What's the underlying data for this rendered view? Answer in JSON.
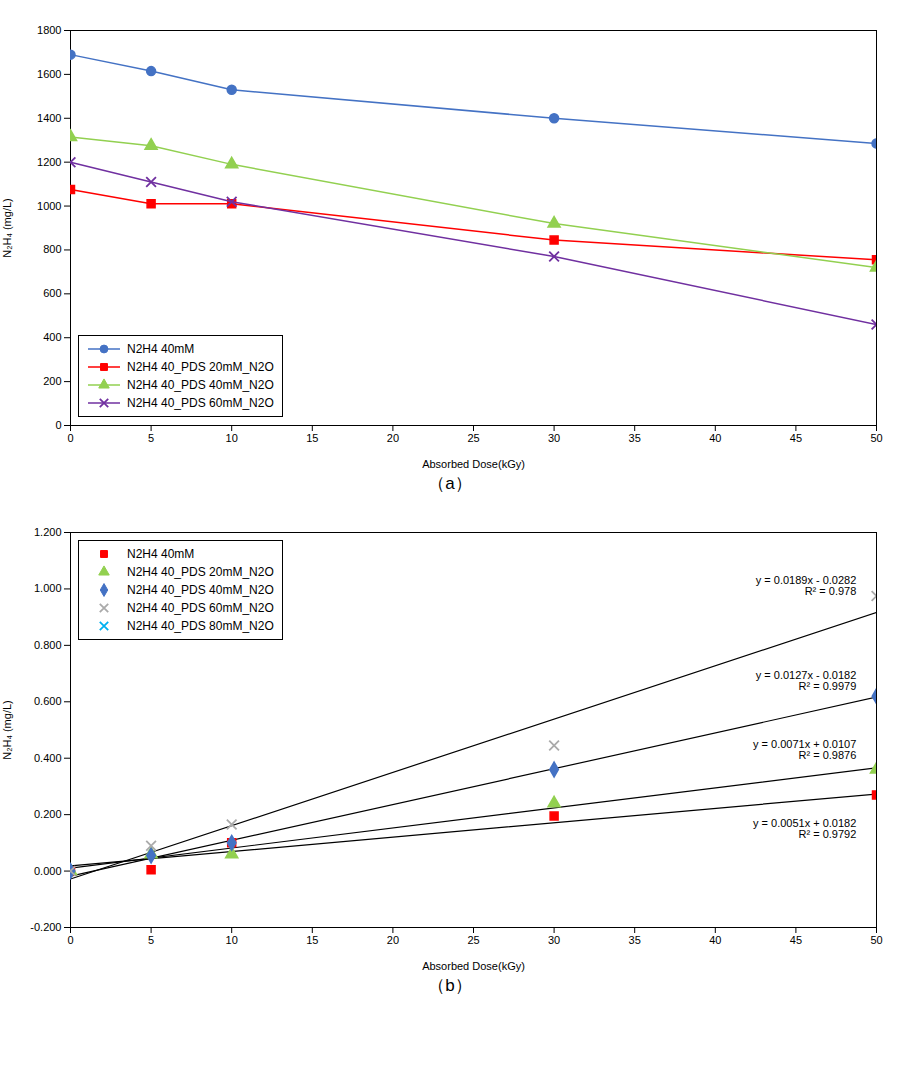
{
  "chart_data": [
    {
      "type": "line",
      "title": "（a）",
      "xlabel": "Absorbed Dose(kGy)",
      "ylabel": "N₂H₄ (mg/L)",
      "xlim": [
        0,
        50
      ],
      "ylim": [
        0,
        1800
      ],
      "xticks": [
        0,
        5,
        10,
        15,
        20,
        25,
        30,
        35,
        40,
        45,
        50
      ],
      "yticks": [
        0,
        200,
        400,
        600,
        800,
        1000,
        1200,
        1400,
        1600,
        1800
      ],
      "grid": false,
      "legend": "lower left",
      "series": [
        {
          "name": "N2H4 40mM",
          "color": "#4472C4",
          "marker": "circle",
          "x": [
            0,
            5,
            10,
            30,
            50
          ],
          "values": [
            1690,
            1615,
            1530,
            1400,
            1285
          ]
        },
        {
          "name": "N2H4 40_PDS 20mM_N2O",
          "color": "#FF0000",
          "marker": "square",
          "x": [
            0,
            5,
            10,
            30,
            50
          ],
          "values": [
            1075,
            1010,
            1010,
            845,
            755
          ]
        },
        {
          "name": "N2H4 40_PDS 40mM_N2O",
          "color": "#92D050",
          "marker": "triangle",
          "x": [
            0,
            5,
            10,
            30,
            50
          ],
          "values": [
            1315,
            1275,
            1190,
            920,
            720
          ]
        },
        {
          "name": "N2H4 40_PDS 60mM_N2O",
          "color": "#7030A0",
          "marker": "times",
          "x": [
            0,
            5,
            10,
            30,
            50
          ],
          "values": [
            1200,
            1110,
            1020,
            770,
            460
          ]
        }
      ]
    },
    {
      "type": "scatter",
      "title": "（b）",
      "xlabel": "Absorbed Dose(kGy)",
      "ylabel": "N₂H₄ (mg/L)",
      "xlim": [
        0,
        50
      ],
      "ylim": [
        -0.2,
        1.2
      ],
      "xticks": [
        0,
        5,
        10,
        15,
        20,
        25,
        30,
        35,
        40,
        45,
        50
      ],
      "yticks": [
        {
          "value": -0.2,
          "label": "-0.200"
        },
        {
          "value": 0,
          "label": "0.000"
        },
        {
          "value": 0.2,
          "label": "0.200"
        },
        {
          "value": 0.4,
          "label": "0.400"
        },
        {
          "value": 0.6,
          "label": "0.600"
        },
        {
          "value": 0.8,
          "label": "0.800"
        },
        {
          "value": 1,
          "label": "1.000"
        },
        {
          "value": 1.2,
          "label": "1.200"
        }
      ],
      "grid": false,
      "legend": "upper left",
      "series": [
        {
          "name": "N2H4 40mM",
          "color": "#FF0000",
          "marker": "square",
          "x": [
            0,
            5,
            10,
            30,
            50
          ],
          "values": [
            0.0,
            0.005,
            0.1,
            0.195,
            0.27
          ],
          "fit": {
            "slope": 0.0051,
            "intercept": 0.0182
          }
        },
        {
          "name": "N2H4 40_PDS 20mM_N2O",
          "color": "#92D050",
          "marker": "triangle",
          "x": [
            0,
            5,
            10,
            30,
            50
          ],
          "values": [
            0.0,
            0.06,
            0.06,
            0.24,
            0.36
          ],
          "fit": {
            "slope": 0.0071,
            "intercept": 0.0107
          }
        },
        {
          "name": "N2H4 40_PDS 40mM_N2O",
          "color": "#4472C4",
          "marker": "diamond",
          "x": [
            0,
            5,
            10,
            30,
            50
          ],
          "values": [
            0.0,
            0.055,
            0.1,
            0.36,
            0.62
          ],
          "fit": {
            "slope": 0.0127,
            "intercept": -0.0182
          }
        },
        {
          "name": "N2H4 40_PDS 60mM_N2O",
          "color": "#AAAAAA",
          "marker": "times",
          "x": [
            0,
            5,
            10,
            30,
            50
          ],
          "values": [
            0.0,
            0.09,
            0.165,
            0.445,
            0.975
          ],
          "fit": {
            "slope": 0.0189,
            "intercept": -0.0282
          }
        },
        {
          "name": "N2H4 40_PDS 80mM_N2O",
          "color": "#00B0F0",
          "marker": "times",
          "x": [],
          "values": []
        }
      ],
      "annotations": [
        "y = 0.0189x - 0.0282\nR² = 0.978",
        "y = 0.0127x - 0.0182\nR² = 0.9979",
        "y = 0.0071x + 0.0107\nR² = 0.9876",
        "y = 0.0051x + 0.0182\nR² = 0.9792"
      ]
    }
  ]
}
